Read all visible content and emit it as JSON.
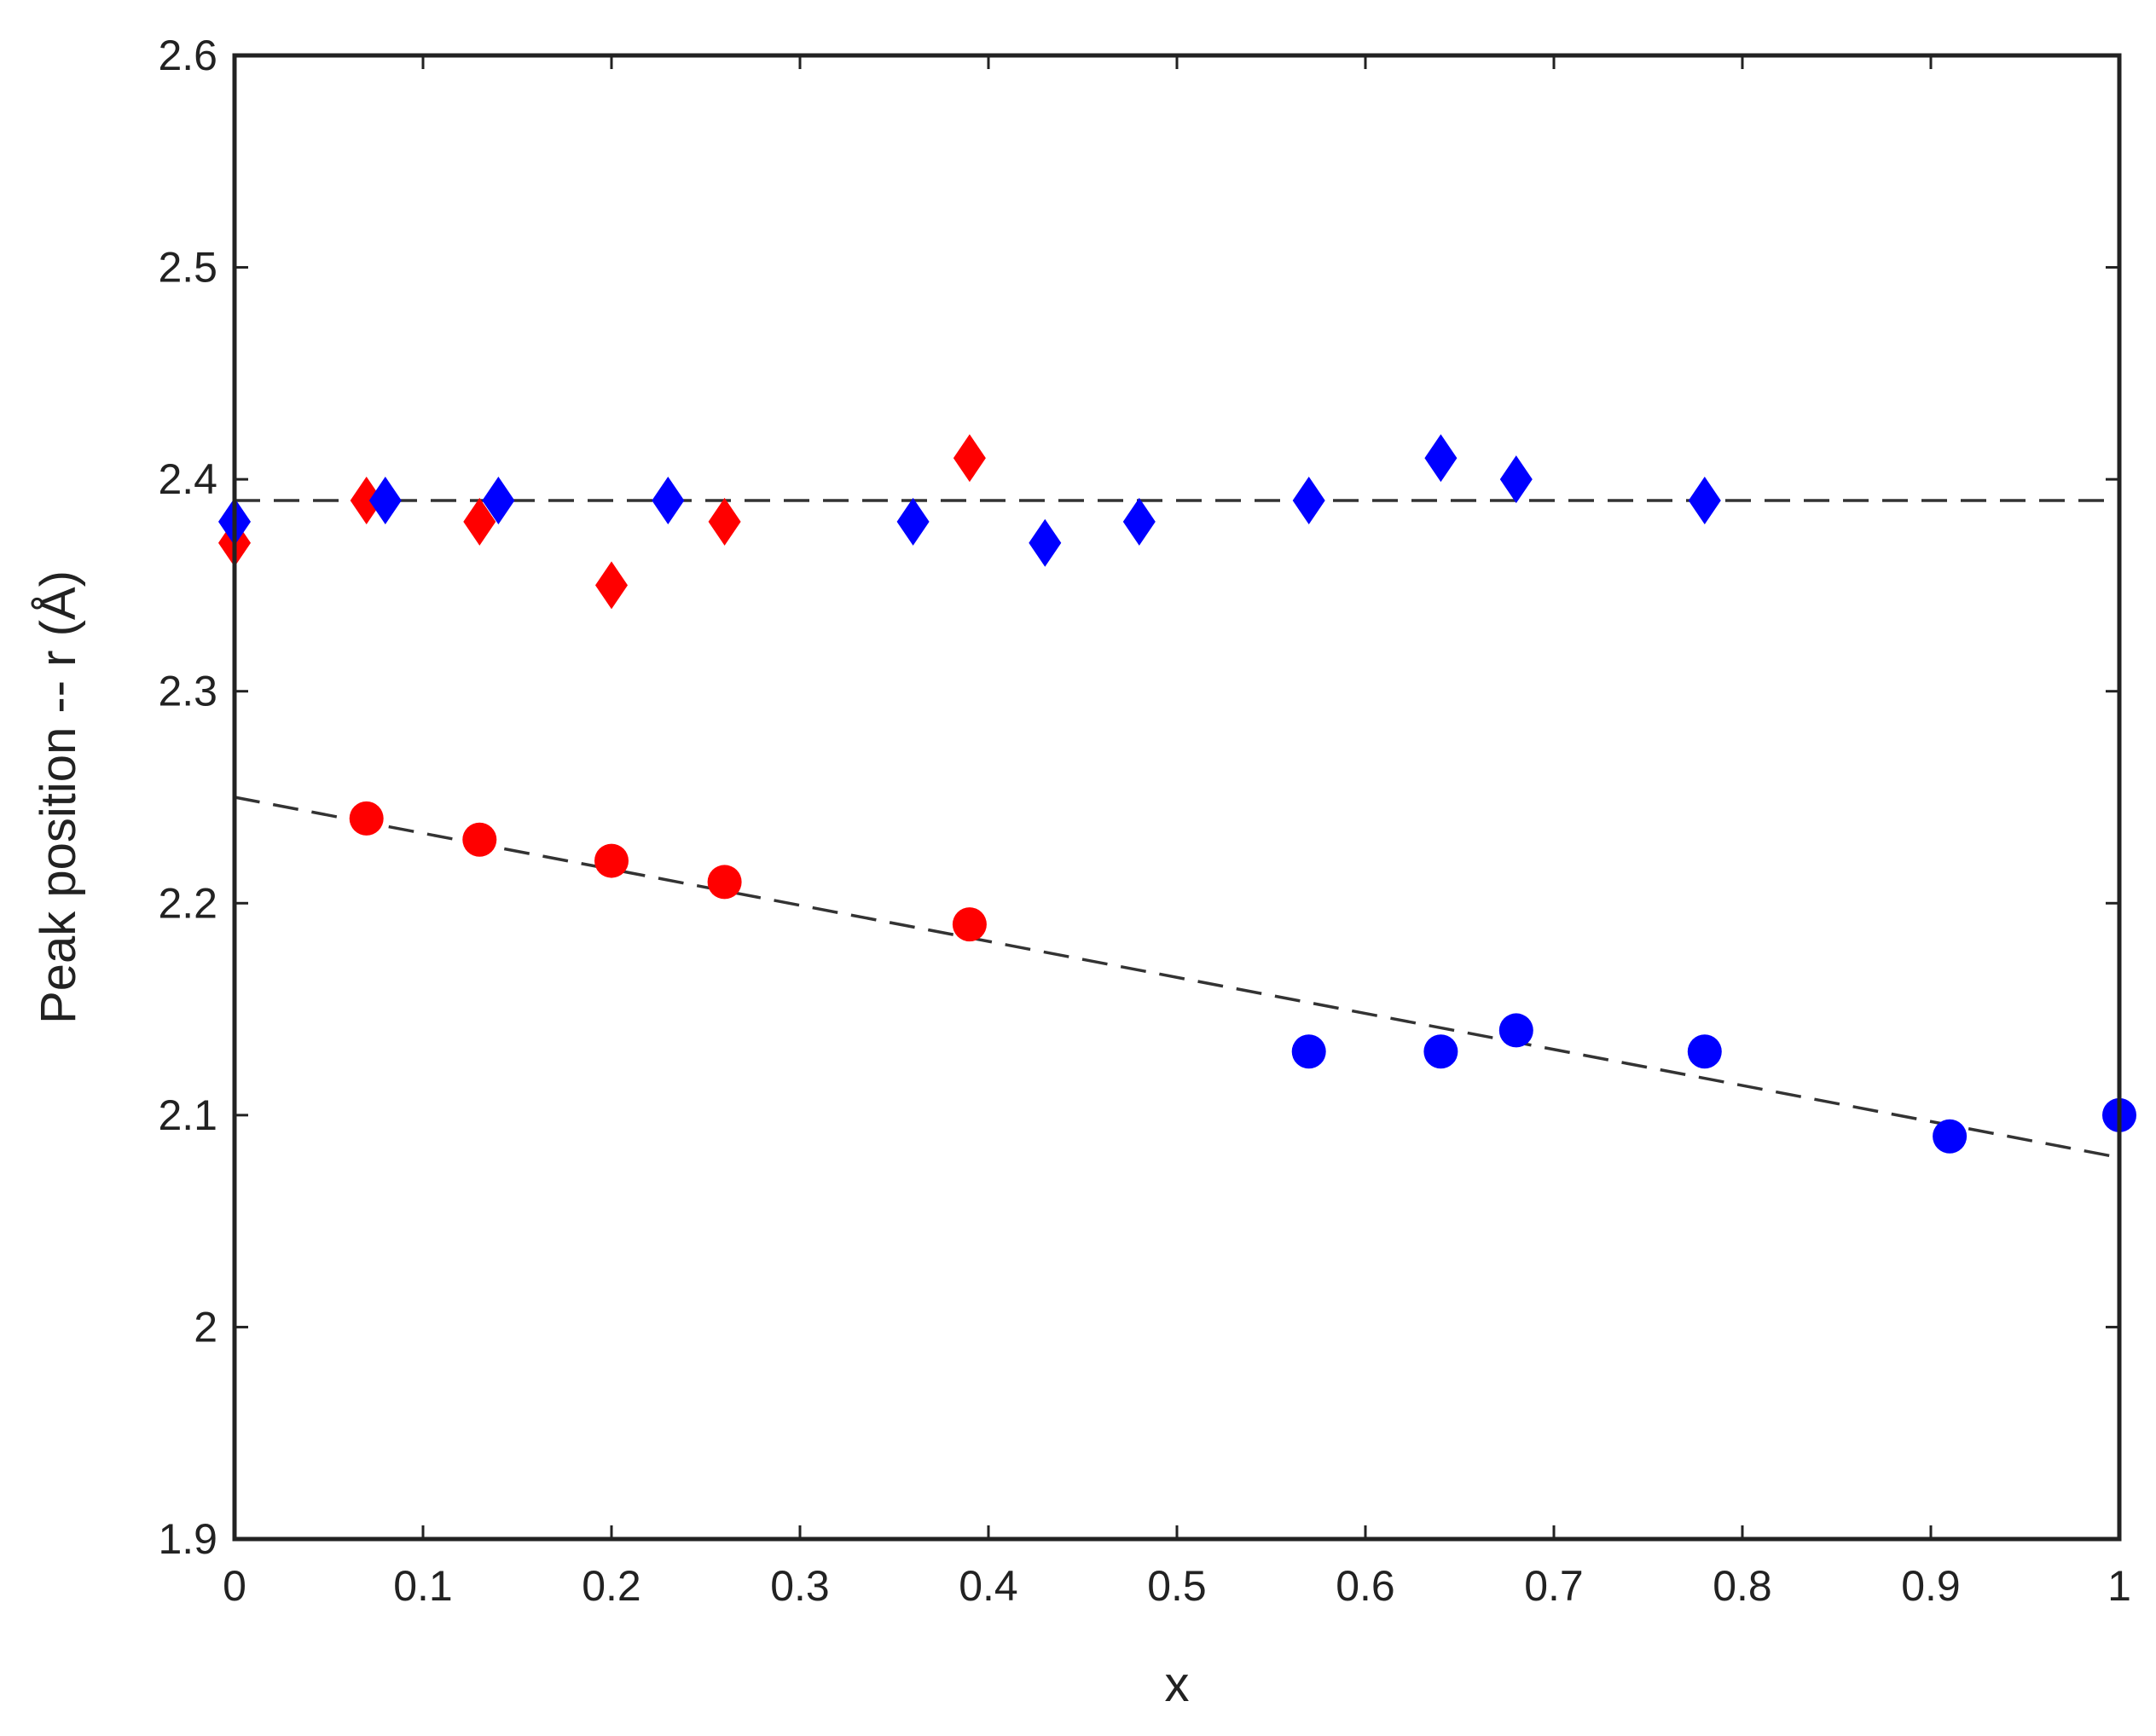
{
  "chart_data": {
    "type": "scatter",
    "title": "",
    "xlabel": "x",
    "ylabel": "Peak position -- r (Å)",
    "xlim": [
      0,
      1
    ],
    "ylim": [
      1.9,
      2.6
    ],
    "x_ticks": [
      0,
      0.1,
      0.2,
      0.3,
      0.4,
      0.5,
      0.6,
      0.7,
      0.8,
      0.9,
      1
    ],
    "x_tick_labels": [
      "0",
      "0.1",
      "0.2",
      "0.3",
      "0.4",
      "0.5",
      "0.6",
      "0.7",
      "0.8",
      "0.9",
      "1"
    ],
    "y_ticks": [
      1.9,
      2.0,
      2.1,
      2.2,
      2.3,
      2.4,
      2.5,
      2.6
    ],
    "y_tick_labels": [
      "1.9",
      "2",
      "2.1",
      "2.2",
      "2.3",
      "2.4",
      "2.5",
      "2.6"
    ],
    "grid": false,
    "legend": "none",
    "series": [
      {
        "marker": "diamond",
        "color": "#ff0000",
        "x": [
          0,
          0.07,
          0.13,
          0.2,
          0.26,
          0.39
        ],
        "y": [
          2.37,
          2.39,
          2.38,
          2.35,
          2.38,
          2.41
        ]
      },
      {
        "marker": "diamond",
        "color": "#0000ff",
        "x": [
          0,
          0.08,
          0.14,
          0.23,
          0.36,
          0.43,
          0.48,
          0.57,
          0.64,
          0.68,
          0.78
        ],
        "y": [
          2.38,
          2.39,
          2.39,
          2.39,
          2.38,
          2.37,
          2.38,
          2.39,
          2.41,
          2.4,
          2.39
        ]
      },
      {
        "marker": "circle",
        "color": "#ff0000",
        "x": [
          0.07,
          0.13,
          0.2,
          0.26,
          0.39
        ],
        "y": [
          2.24,
          2.23,
          2.22,
          2.21,
          2.19
        ]
      },
      {
        "marker": "circle",
        "color": "#0000ff",
        "x": [
          0.57,
          0.64,
          0.68,
          0.78,
          0.91,
          1.0
        ],
        "y": [
          2.13,
          2.13,
          2.14,
          2.13,
          2.09,
          2.1
        ]
      }
    ],
    "reference_lines": [
      {
        "style": "dashed",
        "color": "#333333",
        "x": [
          0,
          1
        ],
        "y": [
          2.39,
          2.39
        ]
      },
      {
        "style": "dashed",
        "color": "#333333",
        "x": [
          0,
          1
        ],
        "y": [
          2.25,
          2.08
        ]
      }
    ]
  }
}
